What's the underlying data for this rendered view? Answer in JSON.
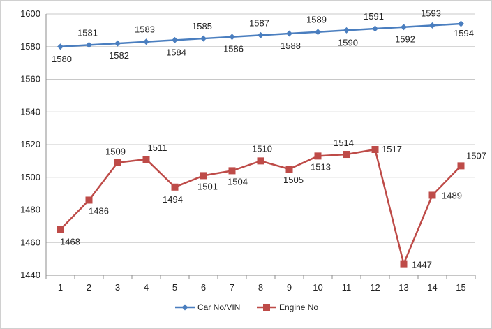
{
  "chart_data": {
    "type": "line",
    "categories": [
      "1",
      "2",
      "3",
      "4",
      "5",
      "6",
      "7",
      "8",
      "9",
      "10",
      "11",
      "12",
      "13",
      "14",
      "15"
    ],
    "ylim": [
      1440,
      1600
    ],
    "yticks": [
      1440,
      1460,
      1480,
      1500,
      1520,
      1540,
      1560,
      1580,
      1600
    ],
    "grid": true,
    "legend_position": "bottom",
    "series": [
      {
        "name": "Car No/VIN",
        "color": "#4a7ebf",
        "marker": "diamond",
        "values": [
          1580,
          1581,
          1582,
          1583,
          1584,
          1585,
          1586,
          1587,
          1588,
          1589,
          1590,
          1591,
          1592,
          1593,
          1594
        ],
        "labels": [
          "1580",
          "1581",
          "1582",
          "1583",
          "1584",
          "1585",
          "1586",
          "1587",
          "1588",
          "1589",
          "1590",
          "1591",
          "1592",
          "1593",
          "1594"
        ]
      },
      {
        "name": "Engine No",
        "color": "#be4b48",
        "marker": "square",
        "values": [
          1468,
          1486,
          1509,
          1511,
          1494,
          1501,
          1504,
          1510,
          1505,
          1513,
          1514,
          1517,
          1447,
          1489,
          1507
        ],
        "labels": [
          "1468",
          "1486",
          "1509",
          "1511",
          "1494",
          "1501",
          "1504",
          "1510",
          "1505",
          "1513",
          "1514",
          "1517",
          "1447",
          "1489",
          "1507"
        ]
      }
    ]
  }
}
